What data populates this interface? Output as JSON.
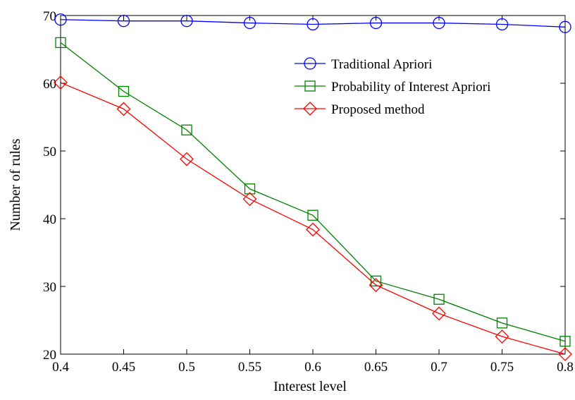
{
  "chart_data": {
    "type": "line",
    "title": "",
    "xlabel": "Interest level",
    "ylabel": "Number of rules",
    "x": [
      0.4,
      0.45,
      0.5,
      0.55,
      0.6,
      0.65,
      0.7,
      0.75,
      0.8
    ],
    "x_tick_labels": [
      "0.4",
      "0.45",
      "0.5",
      "0.55",
      "0.6",
      "0.65",
      "0.7",
      "0.75",
      "0.8"
    ],
    "y_ticks": [
      20,
      30,
      40,
      50,
      60,
      70
    ],
    "xlim": [
      0.4,
      0.8
    ],
    "ylim": [
      20,
      70
    ],
    "grid": false,
    "legend_position": "top-right",
    "series": [
      {
        "name": "Traditional Apriori",
        "color": "#0000ff",
        "marker": "circle",
        "values": [
          69.4,
          69.2,
          69.2,
          68.9,
          68.7,
          68.9,
          68.9,
          68.7,
          68.3
        ]
      },
      {
        "name": "Probability of Interest Apriori",
        "color": "#008000",
        "marker": "square",
        "values": [
          66.0,
          58.8,
          53.1,
          44.4,
          40.5,
          30.8,
          28.1,
          24.6,
          21.9
        ]
      },
      {
        "name": "Proposed method",
        "color": "#ff0000",
        "marker": "diamond",
        "values": [
          60.1,
          56.2,
          48.8,
          42.9,
          38.4,
          30.2,
          26.0,
          22.6,
          20.0
        ]
      }
    ]
  }
}
